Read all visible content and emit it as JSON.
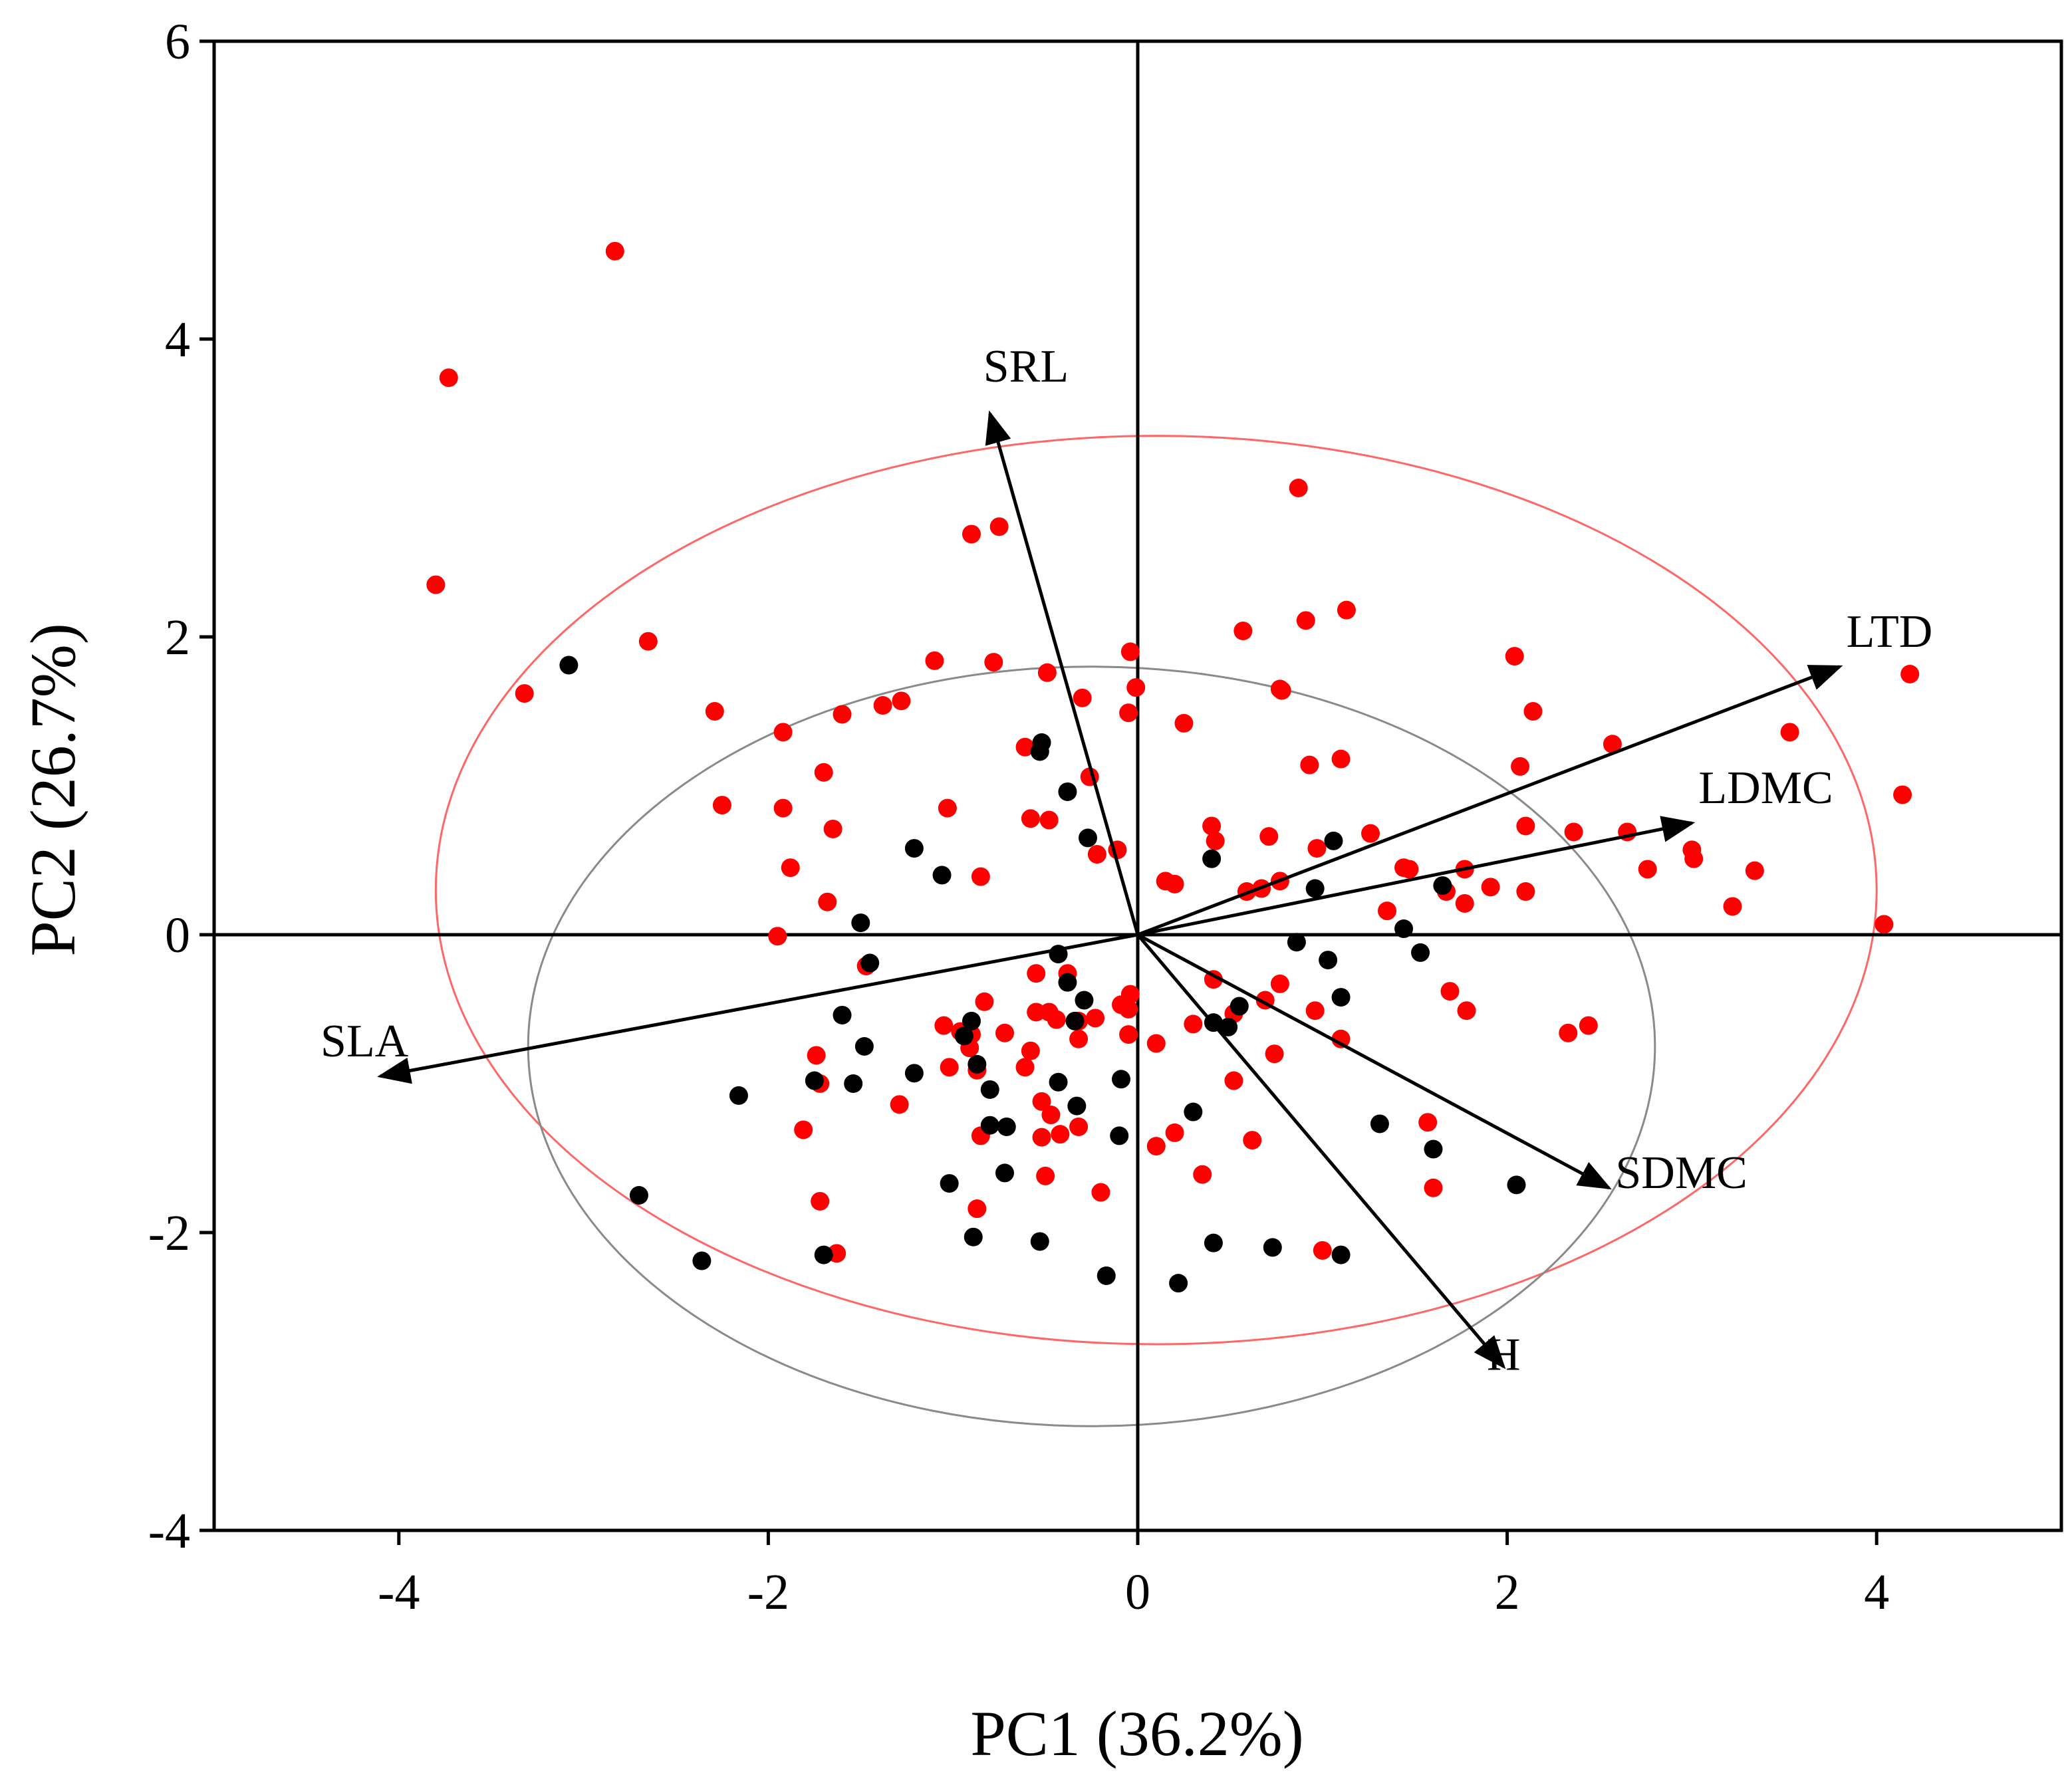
{
  "chart_data": {
    "type": "scatter",
    "subtype": "pca-biplot",
    "title": "",
    "xlabel": "PC1 (36.2%)",
    "ylabel": "PC2 (26.7%)",
    "xlim": [
      -5,
      5
    ],
    "ylim": [
      -4,
      6
    ],
    "xticks": [
      -4,
      -2,
      0,
      2,
      4
    ],
    "yticks": [
      -4,
      -2,
      0,
      2,
      4,
      6
    ],
    "xtick_labels": [
      "-4",
      "-2",
      "0",
      "2",
      "4"
    ],
    "ytick_labels": [
      "-4",
      "-2",
      "0",
      "2",
      "4",
      "6"
    ],
    "grid": false,
    "legend": "none",
    "colors": {
      "group_red": "#ff0000",
      "group_black": "#000000",
      "ellipse_red": "#ff6666",
      "ellipse_black": "#8a8a8a",
      "axes": "#000000"
    },
    "loadings": [
      {
        "name": "SRL",
        "x": -0.8,
        "y": 3.5
      },
      {
        "name": "LTD",
        "x": 3.8,
        "y": 1.8
      },
      {
        "name": "LDMC",
        "x": 3.0,
        "y": 0.75
      },
      {
        "name": "SLA",
        "x": -4.1,
        "y": -0.95
      },
      {
        "name": "SDMC",
        "x": 2.55,
        "y": -1.7
      },
      {
        "name": "H",
        "x": 1.98,
        "y": -2.9
      }
    ],
    "ellipses": [
      {
        "group": "red",
        "cx": 0.1,
        "cy": 0.3,
        "rx": 3.9,
        "ry": 3.05
      },
      {
        "group": "black",
        "cx": -0.25,
        "cy": -0.75,
        "rx": 3.05,
        "ry": 2.55
      }
    ],
    "series": [
      {
        "name": "red",
        "x": [
          -2.83,
          -3.73,
          -3.8,
          -2.65,
          -3.32,
          -2.29,
          -2.25,
          -1.92,
          -1.92,
          -1.88,
          -1.65,
          -1.6,
          -1.7,
          -1.68,
          -1.95,
          -1.38,
          -1.28,
          -1.1,
          -1.03,
          -0.78,
          -0.85,
          -0.9,
          -0.75,
          -0.61,
          -0.58,
          -0.49,
          -0.48,
          -0.3,
          -0.26,
          -0.11,
          -0.04,
          -0.05,
          -0.01,
          0.25,
          0.15,
          0.2,
          0.4,
          0.42,
          0.57,
          0.67,
          0.87,
          0.91,
          0.93,
          1.13,
          1.1,
          0.77,
          0.78,
          0.59,
          0.71,
          0.97,
          0.77,
          1.26,
          2.04,
          2.07,
          2.14,
          2.1,
          1.44,
          1.67,
          1.77,
          1.77,
          1.91,
          2.1,
          2.57,
          2.36,
          2.65,
          2.76,
          3.0,
          3.01,
          3.22,
          3.34,
          3.53,
          4.14,
          4.18,
          4.04,
          -0.22,
          -0.23,
          -0.04,
          -0.09,
          -0.32,
          -0.48,
          -0.55,
          -0.61,
          -0.38,
          -0.05,
          -0.58,
          -0.55,
          -0.83,
          -0.91,
          -1.05,
          -0.9,
          -1.29,
          -1.74,
          -1.72,
          -1.81,
          -1.47,
          -1.02,
          -0.72,
          -0.87,
          -0.52,
          -0.32,
          -0.42,
          -0.47,
          -0.52,
          -0.85,
          -0.5,
          -0.2,
          -0.32,
          -0.87,
          -0.44,
          -0.05,
          0.1,
          0.1,
          0.2,
          0.3,
          0.35,
          0.41,
          0.52,
          0.52,
          0.62,
          0.69,
          0.74,
          0.77,
          1.0,
          1.1,
          0.96,
          1.57,
          1.6,
          1.78,
          1.69,
          1.35,
          1.47,
          2.33,
          2.44,
          -1.63,
          -1.72,
          -0.96
        ],
        "y": [
          4.59,
          3.74,
          2.35,
          1.97,
          1.62,
          1.5,
          0.87,
          1.36,
          0.85,
          0.45,
          0.71,
          1.48,
          1.09,
          0.22,
          -0.01,
          1.54,
          1.57,
          1.84,
          0.85,
          1.83,
          0.39,
          2.69,
          2.74,
          1.26,
          0.78,
          1.76,
          0.77,
          1.59,
          1.06,
          0.57,
          1.9,
          1.49,
          1.66,
          1.42,
          0.36,
          0.34,
          0.73,
          0.63,
          2.04,
          0.31,
          3.0,
          2.11,
          1.14,
          2.18,
          1.18,
          1.65,
          1.64,
          0.29,
          0.66,
          0.58,
          0.36,
          0.68,
          1.87,
          1.13,
          1.5,
          0.73,
          0.45,
          0.29,
          0.44,
          0.21,
          0.32,
          0.29,
          1.28,
          0.69,
          0.69,
          0.44,
          0.57,
          0.51,
          0.19,
          0.43,
          1.36,
          0.94,
          1.75,
          0.07,
          0.54,
          -0.56,
          -0.4,
          -0.47,
          -0.7,
          -0.52,
          -0.26,
          -0.89,
          -0.26,
          -0.67,
          -0.78,
          -0.52,
          -0.45,
          -0.76,
          -0.61,
          -0.67,
          -1.14,
          -0.81,
          -1.0,
          -1.31,
          -0.21,
          -0.89,
          -0.66,
          -0.91,
          -1.12,
          -1.29,
          -1.34,
          -1.21,
          -1.36,
          -1.35,
          -1.62,
          -1.73,
          -0.58,
          -1.84,
          -0.57,
          -0.5,
          -0.73,
          -1.42,
          -1.33,
          -0.6,
          -1.61,
          -0.3,
          -0.98,
          -0.53,
          -1.38,
          -0.44,
          -0.8,
          -0.33,
          -2.12,
          -0.7,
          -0.51,
          -1.26,
          -1.7,
          -0.51,
          -0.38,
          0.16,
          0.44,
          -0.66,
          -0.61,
          -2.14,
          -1.79,
          -0.65
        ]
      },
      {
        "name": "black",
        "x": [
          -3.08,
          -1.5,
          -1.45,
          -1.21,
          -1.06,
          -0.52,
          -0.53,
          -0.38,
          -0.27,
          -1.6,
          -1.48,
          -2.16,
          -1.75,
          -1.54,
          -1.21,
          -0.9,
          -0.87,
          -0.94,
          -0.8,
          -0.71,
          -0.43,
          -0.38,
          -0.34,
          -0.29,
          -0.43,
          -0.33,
          -0.1,
          -0.09,
          -0.8,
          -0.89,
          -0.72,
          -1.02,
          -0.53,
          -0.17,
          0.22,
          0.3,
          0.41,
          0.41,
          0.55,
          0.49,
          0.73,
          1.1,
          1.31,
          1.6,
          2.05,
          -2.7,
          -2.36,
          -1.7,
          0.4,
          0.86,
          0.96,
          1.06,
          1.03,
          1.1,
          1.44,
          1.53,
          1.65
        ],
        "y": [
          1.81,
          0.08,
          -0.19,
          0.58,
          0.4,
          1.29,
          1.23,
          0.96,
          0.65,
          -0.54,
          -0.75,
          -1.08,
          -0.98,
          -1.0,
          -0.93,
          -0.58,
          -0.87,
          -0.68,
          -1.04,
          -1.29,
          -0.13,
          -0.32,
          -0.58,
          -0.44,
          -0.99,
          -1.15,
          -1.35,
          -0.97,
          -1.28,
          -2.03,
          -1.6,
          -1.67,
          -2.06,
          -2.29,
          -2.34,
          -1.19,
          -2.07,
          -0.59,
          -0.48,
          -0.62,
          -2.1,
          -2.15,
          -1.27,
          -1.44,
          -1.68,
          -1.75,
          -2.19,
          -2.15,
          0.51,
          -0.05,
          0.31,
          0.63,
          -0.17,
          -0.42,
          0.04,
          -0.12,
          0.33
        ]
      }
    ]
  }
}
